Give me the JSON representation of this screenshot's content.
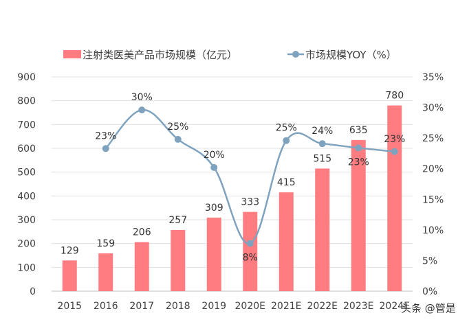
{
  "chart_data": {
    "type": "bar+line",
    "categories": [
      "2015",
      "2016",
      "2017",
      "2018",
      "2019",
      "2020E",
      "2021E",
      "2022E",
      "2023E",
      "2024E"
    ],
    "series": [
      {
        "name": "注射类医美产品市场规模（亿元）",
        "type": "bar",
        "axis": "left",
        "values": [
          129,
          159,
          206,
          257,
          309,
          333,
          415,
          515,
          635,
          780
        ],
        "labels": [
          "129",
          "159",
          "206",
          "257",
          "309",
          "333",
          "415",
          "515",
          "635",
          "780"
        ],
        "color": "#ff7c80"
      },
      {
        "name": "市场规模YOY（%）",
        "type": "line",
        "axis": "right",
        "values": [
          null,
          23.3,
          29.6,
          24.8,
          20.2,
          7.8,
          24.6,
          24.1,
          23.4,
          22.8
        ],
        "labels": [
          "",
          "23%",
          "30%",
          "25%",
          "20%",
          "8%",
          "25%",
          "24%",
          "23%",
          "23%"
        ],
        "color": "#7fa3bf"
      }
    ],
    "ylim": [
      0,
      900
    ],
    "yticks": [
      "0",
      "100",
      "200",
      "300",
      "400",
      "500",
      "600",
      "700",
      "800",
      "900"
    ],
    "y2lim": [
      0,
      35
    ],
    "y2ticks": [
      "0%",
      "5%",
      "10%",
      "15%",
      "20%",
      "25%",
      "30%",
      "35%"
    ],
    "grid": true,
    "legend": "top"
  },
  "watermark": "头条 @管是"
}
